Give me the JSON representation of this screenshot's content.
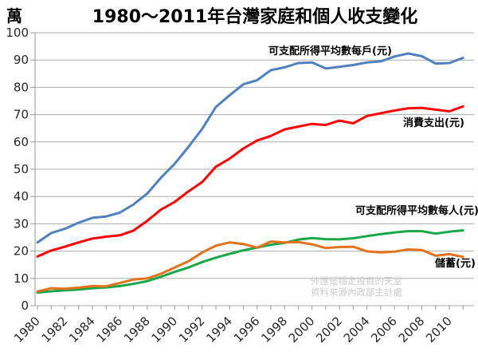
{
  "title": "1980～2011年台灣家庭和個人收支變化",
  "y_axis": {
    "unit": "萬",
    "ticks": [
      0,
      10,
      20,
      30,
      40,
      50,
      60,
      70,
      80,
      90,
      100
    ]
  },
  "x_axis": {
    "tick_labels": [
      "1980",
      "1982",
      "1984",
      "1986",
      "1988",
      "1990",
      "1992",
      "1994",
      "1996",
      "1998",
      "2000",
      "2002",
      "2004",
      "2006",
      "2008",
      "2010"
    ]
  },
  "watermark": {
    "line1": "外匯是穩定投資的天堂",
    "line2": "資料來源內政部主計處"
  },
  "colors": {
    "grid": "#ababab",
    "axis": "#9a9a9a",
    "tick_text": "#262626"
  },
  "chart_data": {
    "type": "line",
    "title": "1980～2011年台灣家庭和個人收支變化",
    "xlabel": "",
    "ylabel": "萬",
    "ylim": [
      0,
      100
    ],
    "y_tick_step": 10,
    "grid": true,
    "legend_position": "inline-annotations",
    "x": [
      1980,
      1981,
      1982,
      1983,
      1984,
      1985,
      1986,
      1987,
      1988,
      1989,
      1990,
      1991,
      1992,
      1993,
      1994,
      1995,
      1996,
      1997,
      1998,
      1999,
      2000,
      2001,
      2002,
      2003,
      2004,
      2005,
      2006,
      2007,
      2008,
      2009,
      2010,
      2011
    ],
    "x_tick_labels": [
      "1980",
      "1982",
      "1984",
      "1986",
      "1988",
      "1990",
      "1992",
      "1994",
      "1996",
      "1998",
      "2000",
      "2002",
      "2004",
      "2006",
      "2008",
      "2010"
    ],
    "series": [
      {
        "name": "可支配所得平均數每戶(元)",
        "color": "#4f81bd",
        "values": [
          23.2,
          26.6,
          28.2,
          30.4,
          32.2,
          32.7,
          34.1,
          37.1,
          41.1,
          46.9,
          52.0,
          58.2,
          64.8,
          72.8,
          77.1,
          81.1,
          82.6,
          86.3,
          87.3,
          88.9,
          89.1,
          86.9,
          87.5,
          88.2,
          89.1,
          89.5,
          91.3,
          92.4,
          91.4,
          88.7,
          88.9,
          90.8
        ]
      },
      {
        "name": "消費支出(元)",
        "color": "#fe0000",
        "values": [
          18.0,
          20.2,
          21.6,
          23.2,
          24.6,
          25.3,
          25.8,
          27.5,
          31.1,
          35.2,
          38.0,
          41.9,
          45.3,
          50.9,
          53.9,
          57.6,
          60.5,
          62.2,
          64.6,
          65.6,
          66.6,
          66.2,
          67.8,
          66.8,
          69.5,
          70.5,
          71.5,
          72.3,
          72.5,
          71.8,
          71.2,
          73.0
        ]
      },
      {
        "name": "可支配所得平均數每人(元)",
        "color": "#1ba64a",
        "values": [
          4.8,
          5.3,
          5.6,
          5.9,
          6.4,
          6.7,
          7.2,
          8.0,
          9.0,
          10.6,
          12.4,
          14.0,
          16.0,
          17.6,
          19.0,
          20.3,
          21.3,
          22.3,
          23.0,
          24.2,
          24.8,
          24.4,
          24.3,
          24.7,
          25.5,
          26.2,
          26.8,
          27.3,
          27.3,
          26.4,
          27.1,
          27.6
        ]
      },
      {
        "name": "儲蓄(元)",
        "color": "#e2721e",
        "values": [
          5.2,
          6.4,
          6.2,
          6.6,
          7.2,
          7.1,
          8.3,
          9.6,
          10.0,
          11.7,
          14.0,
          16.3,
          19.5,
          22.0,
          23.2,
          22.6,
          21.3,
          23.5,
          23.2,
          23.3,
          22.5,
          21.1,
          21.5,
          21.6,
          19.9,
          19.5,
          19.8,
          20.6,
          20.4,
          18.3,
          18.9,
          17.9
        ]
      }
    ]
  }
}
